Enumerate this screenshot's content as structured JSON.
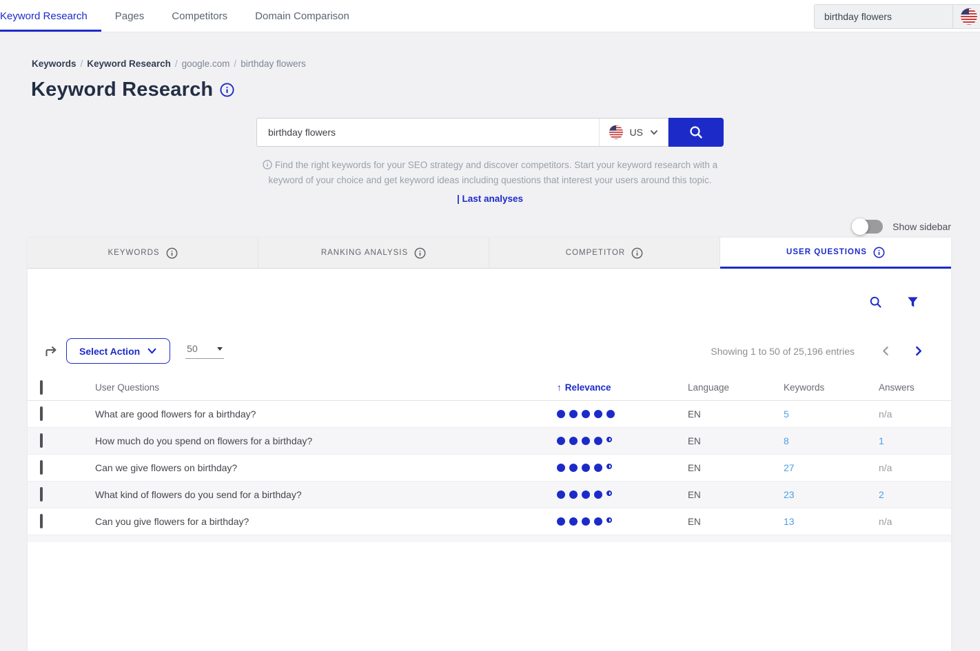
{
  "colors": {
    "accent": "#1c2bc8",
    "link_blue": "#4d9fe6",
    "page_bg": "#f1f1f3",
    "title_ink": "#232e44"
  },
  "icons": {
    "info-icon": "circled-i (svg)",
    "search-icon": "magnifier (svg)",
    "filter-icon": "funnel (svg)",
    "export-icon": "corner-arrow-right (svg)",
    "chevron-down-icon": "v (svg)",
    "chevron-left-icon": "< (svg)",
    "chevron-right-icon": "> (svg)",
    "us-flag-icon": "US flag roundel (svg)"
  },
  "topnav": {
    "items": [
      {
        "label": "Keyword Research",
        "active": true
      },
      {
        "label": "Pages",
        "active": false
      },
      {
        "label": "Competitors",
        "active": false
      },
      {
        "label": "Domain Comparison",
        "active": false
      }
    ],
    "search_value": "birthday flowers"
  },
  "breadcrumb": {
    "separator": "/",
    "items": [
      "Keywords",
      "Keyword Research",
      "google.com",
      "birthday flowers"
    ]
  },
  "page": {
    "title": "Keyword Research"
  },
  "search": {
    "value": "birthday flowers",
    "country": "US",
    "description": "Find the right keywords for your SEO strategy and discover competitors. Start your keyword research with a keyword of your choice and get keyword ideas including questions that interest your users around this topic.",
    "last_analyses_label": "| Last analyses"
  },
  "sidebar_toggle": {
    "label": "Show sidebar",
    "state": "off"
  },
  "tabs": {
    "items": [
      {
        "label": "KEYWORDS",
        "active": false
      },
      {
        "label": "RANKING ANALYSIS",
        "active": false
      },
      {
        "label": "COMPETITOR",
        "active": false
      },
      {
        "label": "USER QUESTIONS",
        "active": true
      }
    ]
  },
  "actions": {
    "select_action_label": "Select Action",
    "page_size": "50",
    "showing_text": "Showing 1 to 50 of 25,196 entries"
  },
  "table": {
    "columns": {
      "questions": "User Questions",
      "relevance": "Relevance",
      "language": "Language",
      "keywords": "Keywords",
      "answers": "Answers"
    },
    "sort": {
      "column": "Relevance",
      "direction": "asc",
      "arrow": "↑"
    },
    "rows": [
      {
        "question": "What are good flowers for a birthday?",
        "relevance": 5,
        "language": "EN",
        "keywords": "5",
        "answers": "n/a"
      },
      {
        "question": "How much do you spend on flowers for a birthday?",
        "relevance": 4.5,
        "language": "EN",
        "keywords": "8",
        "answers": "1"
      },
      {
        "question": "Can we give flowers on birthday?",
        "relevance": 4.5,
        "language": "EN",
        "keywords": "27",
        "answers": "n/a"
      },
      {
        "question": "What kind of flowers do you send for a birthday?",
        "relevance": 4.5,
        "language": "EN",
        "keywords": "23",
        "answers": "2"
      },
      {
        "question": "Can you give flowers for a birthday?",
        "relevance": 4.5,
        "language": "EN",
        "keywords": "13",
        "answers": "n/a"
      }
    ]
  }
}
